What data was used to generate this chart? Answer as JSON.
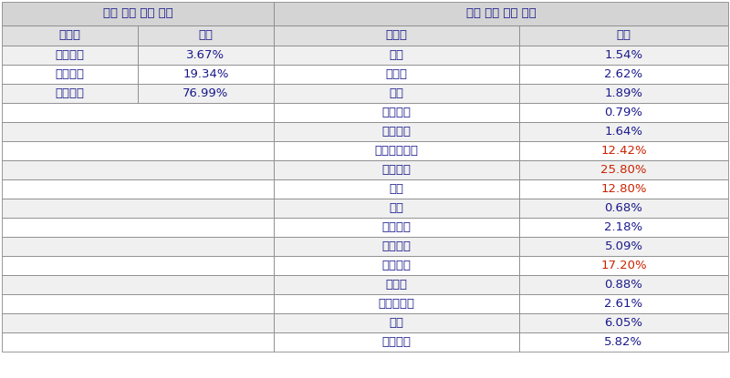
{
  "title_left": "용어 유형 분류 태그",
  "title_right": "용어 분야 분류 태그",
  "header_label": "레이블",
  "header_ratio": "비율",
  "left_data": [
    [
      "데이터셋",
      "3.67%"
    ],
    [
      "이론모형",
      "19.34%"
    ],
    [
      "연구분야",
      "76.99%"
    ]
  ],
  "right_data": [
    [
      "수학",
      "1.54%"
    ],
    [
      "물리학",
      "2.62%"
    ],
    [
      "화학",
      "1.89%"
    ],
    [
      "지구과학",
      "0.79%"
    ],
    [
      "생명과학",
      "1.64%"
    ],
    [
      "농림수산식품",
      "12.42%"
    ],
    [
      "보건의료",
      "25.80%"
    ],
    [
      "기계",
      "12.80%"
    ],
    [
      "재료",
      "0.68%"
    ],
    [
      "화학공학",
      "2.18%"
    ],
    [
      "전기전자",
      "5.09%"
    ],
    [
      "정보통신",
      "17.20%"
    ],
    [
      "원자력",
      "0.88%"
    ],
    [
      "에너지자원",
      "2.61%"
    ],
    [
      "환경",
      "6.05%"
    ],
    [
      "건설교통",
      "5.82%"
    ]
  ],
  "header_bg": "#e0e0e0",
  "title_bg": "#d4d4d4",
  "row_bg_odd": "#f0f0f0",
  "row_bg_even": "#ffffff",
  "text_color_normal": "#1a1a8c",
  "text_color_highlight": "#cc2200",
  "border_color": "#888888",
  "highlight_values": [
    "12.42%",
    "25.80%",
    "12.80%",
    "17.20%"
  ],
  "font_size": 9.5
}
